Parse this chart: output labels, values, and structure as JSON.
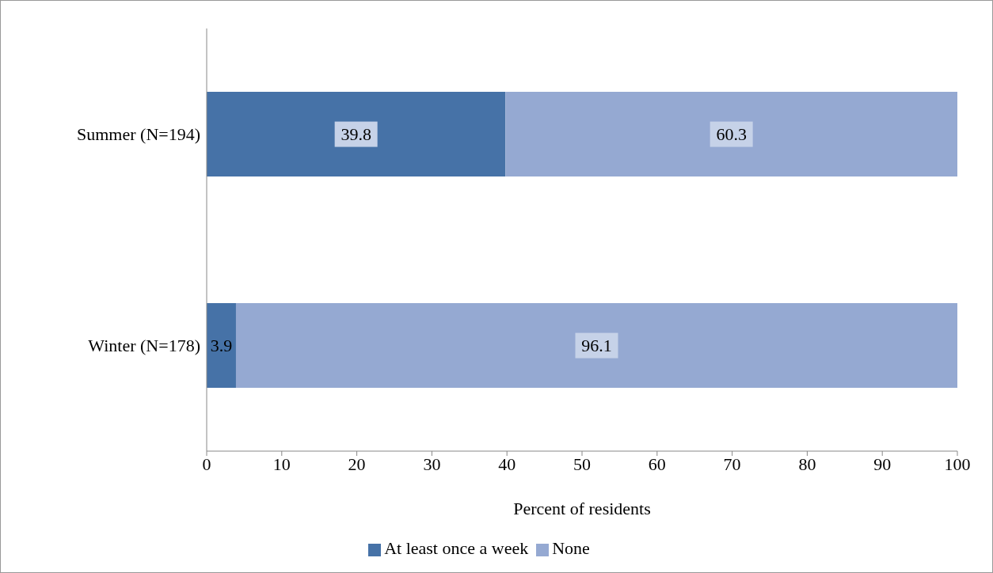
{
  "chart_data": {
    "type": "bar",
    "orientation": "horizontal",
    "stacked": true,
    "xlabel": "Percent of residents",
    "categories": [
      "Summer (N=194)",
      "Winter (N=178)"
    ],
    "series": [
      {
        "name": "At least once a week",
        "color": "#4672a7",
        "values": [
          39.8,
          3.9
        ]
      },
      {
        "name": "None",
        "color": "#95a9d2",
        "values": [
          60.3,
          96.1
        ]
      }
    ],
    "xlim": [
      0,
      100
    ],
    "xticks": [
      0,
      10,
      20,
      30,
      40,
      50,
      60,
      70,
      80,
      90,
      100
    ],
    "data_labels": true,
    "legend": "bottom",
    "grid": false
  }
}
